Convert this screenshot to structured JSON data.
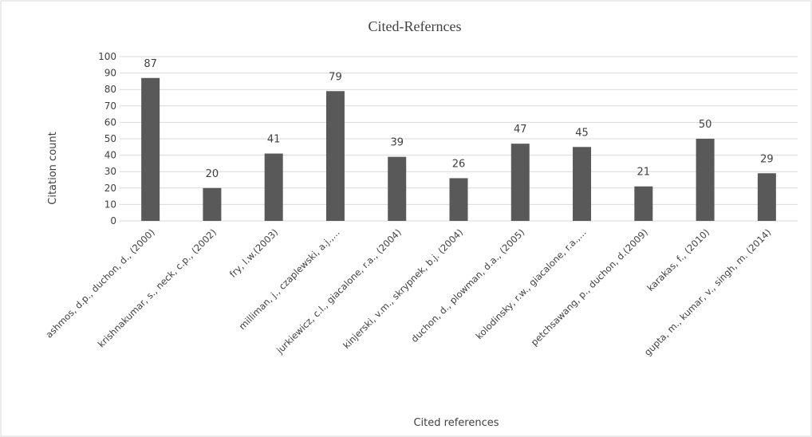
{
  "chart_data": {
    "type": "bar",
    "title": "Cited-Refernces",
    "xlabel": "Cited references",
    "ylabel": "Citation count",
    "ylim": [
      0,
      100
    ],
    "yticks": [
      0,
      10,
      20,
      30,
      40,
      50,
      60,
      70,
      80,
      90,
      100
    ],
    "grid": true,
    "legend": "none",
    "bar_color": "#595959",
    "categories": [
      "ashmos, d.p., duchon, d., (2000)",
      "krishnakumar, s., neck, c.p., (2002)",
      "fry, l.w.(2003)",
      "milliman, j., czaplewski, a.j.,...",
      "jurkiewicz, c.l., giacalone, r.a., (2004)",
      "kinjerski, v.m., skrypnek, b.j. (2004)",
      "duchon, d., plowman, d.a., (2005)",
      "kolodinsky, r.w., giacalone, r.a.,...",
      "petchsawang, p., duchon, d.(2009)",
      "karakas, f., (2010)",
      "gupta, m., kumar, v., singh, m. (2014)"
    ],
    "values": [
      87,
      20,
      41,
      79,
      39,
      26,
      47,
      45,
      21,
      50,
      29
    ]
  }
}
